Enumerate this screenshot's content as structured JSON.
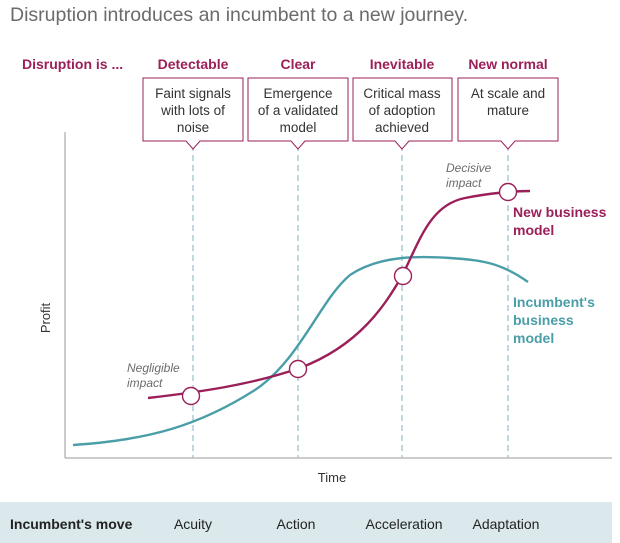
{
  "title": "Disruption introduces an incumbent to a new journey.",
  "header_label": "Disruption is ...",
  "stages": [
    {
      "name": "Detectable",
      "box": [
        "Faint signals",
        "with lots of",
        "noise"
      ]
    },
    {
      "name": "Clear",
      "box": [
        "Emergence",
        "of a validated",
        "model"
      ]
    },
    {
      "name": "Inevitable",
      "box": [
        "Critical mass",
        "of adoption",
        "achieved"
      ]
    },
    {
      "name": "New normal",
      "box": [
        "At scale and",
        "mature"
      ]
    }
  ],
  "annotations": {
    "negligible": [
      "Negligible",
      "impact"
    ],
    "decisive": [
      "Decisive",
      "impact"
    ]
  },
  "axes": {
    "x_label": "Time",
    "y_label": "Profit"
  },
  "series": [
    {
      "key": "new",
      "label": [
        "New business",
        "model"
      ],
      "color": "#9b1f58"
    },
    {
      "key": "incumbent",
      "label": [
        "Incumbent's",
        "business",
        "model"
      ],
      "color": "#4a9ea8"
    }
  ],
  "moves": {
    "title": "Incumbent's move",
    "items": [
      "Acuity",
      "Action",
      "Acceleration",
      "Adaptation"
    ]
  },
  "colors": {
    "accent": "#9b1f58",
    "teal": "#4a9ea8",
    "band": "#dbe9ec",
    "grid": "#9fc4cc",
    "axis": "#999999"
  }
}
